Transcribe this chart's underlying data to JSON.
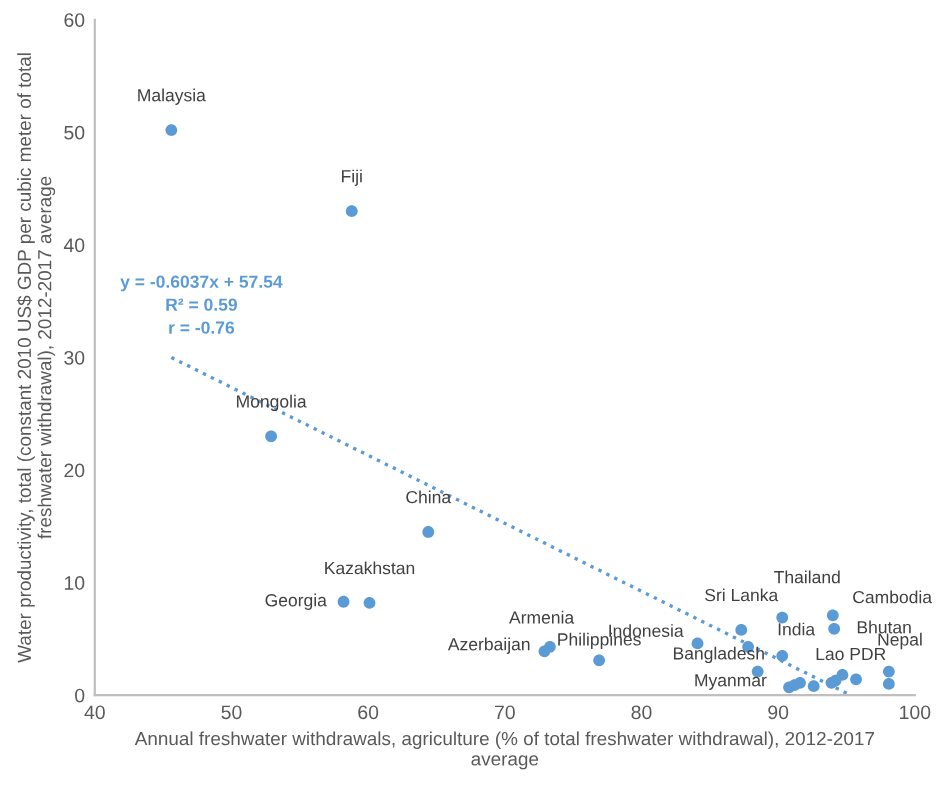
{
  "chart_data": {
    "type": "scatter",
    "xlabel": "Annual freshwater withdrawals, agriculture (% of total freshwater withdrawal), 2012-2017\naverage",
    "ylabel": "Water productivity, total (constant 2010 US$ GDP per cubic meter of total\nfreshwater withdrawal), 2012-2017 average",
    "xlim": [
      40,
      100
    ],
    "xticks": [
      40,
      50,
      60,
      70,
      80,
      90,
      100
    ],
    "ylim": [
      0,
      60
    ],
    "yticks": [
      0,
      10,
      20,
      30,
      40,
      50,
      60
    ],
    "grid": false,
    "legend": false,
    "series": [
      {
        "marker": "circle",
        "color": "#5b9bd5",
        "x": [
          45.6,
          58.8,
          52.9,
          64.4,
          58.2,
          60.1,
          72.9,
          73.3,
          76.9,
          84.1,
          87.3,
          87.8,
          90.3,
          90.3,
          88.5,
          90.8,
          91.2,
          91.6,
          92.6,
          94.0,
          94.1,
          93.9,
          94.2,
          94.7,
          95.7,
          98.1,
          98.1
        ],
        "values": [
          50.2,
          43.0,
          23.0,
          14.5,
          8.3,
          8.2,
          3.9,
          4.3,
          3.1,
          4.6,
          5.8,
          4.3,
          6.9,
          3.5,
          2.1,
          0.7,
          0.9,
          1.1,
          0.8,
          7.1,
          5.9,
          1.1,
          1.3,
          1.8,
          1.4,
          2.1,
          1.0
        ]
      },
      {
        "type": "line",
        "marker": "none",
        "color": "#5b9bd5",
        "line_style": "dotted",
        "x": [
          45.6,
          95.3
        ],
        "values": [
          30.0,
          0.0
        ]
      }
    ],
    "annotations": [
      {
        "text": "Malaysia",
        "x": 45.6,
        "y": 50.2
      },
      {
        "text": "Fiji",
        "x": 58.8,
        "y": 43.0
      },
      {
        "text": "Mongolia",
        "x": 52.9,
        "y": 23.0
      },
      {
        "text": "China",
        "x": 64.4,
        "y": 14.5
      },
      {
        "text": "Georgia",
        "x": 58.2,
        "y": 8.3
      },
      {
        "text": "Kazakhstan",
        "x": 60.1,
        "y": 8.2
      },
      {
        "text": "Azerbaijan",
        "x": 72.9,
        "y": 3.9
      },
      {
        "text": "Armenia",
        "x": 73.3,
        "y": 4.3
      },
      {
        "text": "Philippines",
        "x": 76.9,
        "y": 3.1
      },
      {
        "text": "Indonesia",
        "x": 84.1,
        "y": 4.6
      },
      {
        "text": "Sri Lanka",
        "x": 87.3,
        "y": 5.8
      },
      {
        "text": "Thailand",
        "x": 90.3,
        "y": 6.9
      },
      {
        "text": "India",
        "x": 90.3,
        "y": 3.5
      },
      {
        "text": "Bangladesh",
        "x": 88.5,
        "y": 2.1
      },
      {
        "text": "Myanmar",
        "x": 90.8,
        "y": 0.7
      },
      {
        "text": "Cambodia",
        "x": 94.0,
        "y": 7.1
      },
      {
        "text": "Bhutan",
        "x": 94.1,
        "y": 5.9
      },
      {
        "text": "Lao PDR",
        "x": 94.7,
        "y": 1.8
      },
      {
        "text": "Nepal",
        "x": 98.1,
        "y": 2.1
      },
      "y = -0.6037x + 57.54",
      "R² = 0.59",
      "r = -0.76"
    ]
  }
}
